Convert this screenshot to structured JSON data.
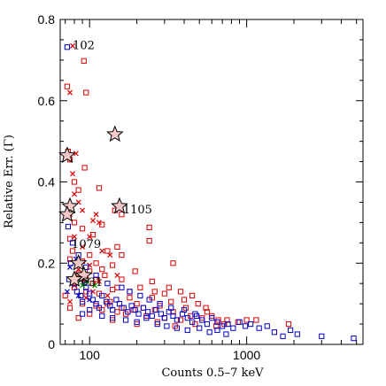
{
  "chart_data": {
    "type": "scatter",
    "title": "",
    "xlabel": "Counts 0.5–7 keV",
    "ylabel": "Relative Err. (Γ)",
    "xscale": "log",
    "xlim": [
      65,
      5500
    ],
    "ylim": [
      0,
      0.8
    ],
    "x_ticks": [
      100,
      1000
    ],
    "x_tick_labels": [
      "100",
      "1000"
    ],
    "y_ticks": [
      0,
      0.2,
      0.4,
      0.6,
      0.8
    ],
    "y_tick_labels": [
      "0",
      "0.2",
      "0.4",
      "0.6",
      "0.8"
    ],
    "grid": false,
    "colors": {
      "red": "#dd0000",
      "blue": "#0000cc",
      "green": "#009900"
    },
    "annotations": [
      {
        "text": "102",
        "x": 78,
        "y": 0.738
      },
      {
        "text": "1105",
        "x": 163,
        "y": 0.333
      },
      {
        "text": "1079",
        "x": 77,
        "y": 0.248
      },
      {
        "text": "631",
        "x": 88,
        "y": 0.155
      }
    ],
    "stars": [
      {
        "x": 145,
        "y": 0.517
      },
      {
        "x": 72,
        "y": 0.465
      },
      {
        "x": 155,
        "y": 0.34
      },
      {
        "x": 75,
        "y": 0.34
      },
      {
        "x": 72,
        "y": 0.32
      },
      {
        "x": 85,
        "y": 0.2
      },
      {
        "x": 92,
        "y": 0.17
      },
      {
        "x": 80,
        "y": 0.16
      }
    ],
    "series": [
      {
        "color": "red",
        "marker": "square",
        "points": [
          [
            92,
            0.698
          ],
          [
            72,
            0.635
          ],
          [
            95,
            0.62
          ],
          [
            73,
            0.475
          ],
          [
            75,
            0.455
          ],
          [
            93,
            0.435
          ],
          [
            80,
            0.4
          ],
          [
            85,
            0.38
          ],
          [
            115,
            0.385
          ],
          [
            160,
            0.32
          ],
          [
            80,
            0.3
          ],
          [
            120,
            0.295
          ],
          [
            145,
            0.33
          ],
          [
            90,
            0.285
          ],
          [
            240,
            0.288
          ],
          [
            105,
            0.27
          ],
          [
            75,
            0.26
          ],
          [
            240,
            0.255
          ],
          [
            150,
            0.24
          ],
          [
            130,
            0.23
          ],
          [
            100,
            0.22
          ],
          [
            75,
            0.21
          ],
          [
            160,
            0.22
          ],
          [
            110,
            0.2
          ],
          [
            90,
            0.205
          ],
          [
            340,
            0.2
          ],
          [
            195,
            0.18
          ],
          [
            140,
            0.195
          ],
          [
            120,
            0.185
          ],
          [
            100,
            0.18
          ],
          [
            85,
            0.175
          ],
          [
            105,
            0.15
          ],
          [
            250,
            0.155
          ],
          [
            160,
            0.16
          ],
          [
            125,
            0.17
          ],
          [
            80,
            0.14
          ],
          [
            210,
            0.14
          ],
          [
            95,
            0.13
          ],
          [
            115,
            0.125
          ],
          [
            140,
            0.135
          ],
          [
            300,
            0.125
          ],
          [
            180,
            0.13
          ],
          [
            380,
            0.13
          ],
          [
            250,
            0.115
          ],
          [
            450,
            0.12
          ],
          [
            330,
            0.105
          ],
          [
            200,
            0.1
          ],
          [
            160,
            0.09
          ],
          [
            130,
            0.1
          ],
          [
            110,
            0.095
          ],
          [
            90,
            0.1
          ],
          [
            280,
            0.095
          ],
          [
            410,
            0.09
          ],
          [
            490,
            0.1
          ],
          [
            560,
            0.08
          ],
          [
            260,
            0.085
          ],
          [
            220,
            0.09
          ],
          [
            190,
            0.085
          ],
          [
            150,
            0.08
          ],
          [
            120,
            0.085
          ],
          [
            100,
            0.075
          ],
          [
            340,
            0.08
          ],
          [
            600,
            0.07
          ],
          [
            660,
            0.06
          ],
          [
            750,
            0.06
          ],
          [
            520,
            0.065
          ],
          [
            440,
            0.07
          ],
          [
            380,
            0.06
          ],
          [
            300,
            0.065
          ],
          [
            230,
            0.07
          ],
          [
            170,
            0.075
          ],
          [
            85,
            0.065
          ],
          [
            720,
            0.05
          ],
          [
            880,
            0.055
          ],
          [
            1000,
            0.06
          ],
          [
            640,
            0.045
          ],
          [
            470,
            0.05
          ],
          [
            350,
            0.045
          ],
          [
            270,
            0.055
          ],
          [
            200,
            0.05
          ],
          [
            140,
            0.06
          ],
          [
            75,
            0.09
          ],
          [
            1150,
            0.06
          ],
          [
            1850,
            0.05
          ],
          [
            550,
            0.09
          ],
          [
            400,
            0.11
          ],
          [
            320,
            0.14
          ],
          [
            260,
            0.13
          ],
          [
            180,
            0.115
          ],
          [
            150,
            0.14
          ],
          [
            135,
            0.105
          ],
          [
            110,
            0.16
          ],
          [
            95,
            0.16
          ],
          [
            88,
            0.12
          ],
          [
            70,
            0.12
          ],
          [
            78,
            0.23
          ]
        ]
      },
      {
        "color": "red",
        "marker": "x",
        "points": [
          [
            78,
            0.735
          ],
          [
            75,
            0.62
          ],
          [
            82,
            0.47
          ],
          [
            78,
            0.42
          ],
          [
            80,
            0.37
          ],
          [
            85,
            0.35
          ],
          [
            90,
            0.33
          ],
          [
            75,
            0.32
          ],
          [
            105,
            0.305
          ],
          [
            110,
            0.32
          ],
          [
            115,
            0.3
          ],
          [
            100,
            0.265
          ],
          [
            80,
            0.265
          ],
          [
            90,
            0.24
          ],
          [
            120,
            0.23
          ],
          [
            135,
            0.22
          ],
          [
            100,
            0.195
          ],
          [
            85,
            0.185
          ],
          [
            90,
            0.16
          ],
          [
            115,
            0.155
          ],
          [
            150,
            0.17
          ],
          [
            80,
            0.145
          ],
          [
            105,
            0.13
          ],
          [
            130,
            0.12
          ],
          [
            95,
            0.115
          ],
          [
            75,
            0.105
          ]
        ]
      },
      {
        "color": "blue",
        "marker": "square",
        "points": [
          [
            72,
            0.732
          ],
          [
            73,
            0.29
          ],
          [
            76,
            0.2
          ],
          [
            74,
            0.16
          ],
          [
            80,
            0.15
          ],
          [
            83,
            0.13
          ],
          [
            88,
            0.12
          ],
          [
            90,
            0.105
          ],
          [
            95,
            0.14
          ],
          [
            100,
            0.125
          ],
          [
            105,
            0.11
          ],
          [
            110,
            0.1
          ],
          [
            115,
            0.09
          ],
          [
            120,
            0.12
          ],
          [
            128,
            0.105
          ],
          [
            135,
            0.095
          ],
          [
            140,
            0.085
          ],
          [
            148,
            0.11
          ],
          [
            155,
            0.1
          ],
          [
            165,
            0.09
          ],
          [
            175,
            0.08
          ],
          [
            185,
            0.095
          ],
          [
            195,
            0.085
          ],
          [
            205,
            0.075
          ],
          [
            220,
            0.09
          ],
          [
            235,
            0.08
          ],
          [
            250,
            0.07
          ],
          [
            265,
            0.085
          ],
          [
            285,
            0.075
          ],
          [
            300,
            0.065
          ],
          [
            320,
            0.08
          ],
          [
            340,
            0.07
          ],
          [
            360,
            0.06
          ],
          [
            390,
            0.075
          ],
          [
            420,
            0.065
          ],
          [
            450,
            0.055
          ],
          [
            480,
            0.07
          ],
          [
            520,
            0.06
          ],
          [
            560,
            0.05
          ],
          [
            600,
            0.065
          ],
          [
            650,
            0.055
          ],
          [
            700,
            0.045
          ],
          [
            760,
            0.05
          ],
          [
            820,
            0.04
          ],
          [
            900,
            0.055
          ],
          [
            980,
            0.045
          ],
          [
            1060,
            0.05
          ],
          [
            1200,
            0.04
          ],
          [
            1350,
            0.045
          ],
          [
            1500,
            0.03
          ],
          [
            1700,
            0.02
          ],
          [
            1900,
            0.035
          ],
          [
            2100,
            0.025
          ],
          [
            3000,
            0.02
          ],
          [
            4800,
            0.015
          ],
          [
            130,
            0.15
          ],
          [
            160,
            0.14
          ],
          [
            110,
            0.17
          ],
          [
            95,
            0.19
          ],
          [
            85,
            0.22
          ],
          [
            78,
            0.25
          ],
          [
            180,
            0.13
          ],
          [
            210,
            0.12
          ],
          [
            240,
            0.11
          ],
          [
            280,
            0.1
          ],
          [
            330,
            0.09
          ],
          [
            400,
            0.085
          ],
          [
            470,
            0.075
          ],
          [
            90,
            0.075
          ],
          [
            100,
            0.085
          ],
          [
            120,
            0.07
          ],
          [
            140,
            0.065
          ],
          [
            170,
            0.06
          ],
          [
            200,
            0.055
          ],
          [
            230,
            0.065
          ],
          [
            270,
            0.05
          ],
          [
            310,
            0.045
          ],
          [
            360,
            0.04
          ],
          [
            420,
            0.035
          ],
          [
            500,
            0.04
          ],
          [
            580,
            0.03
          ],
          [
            650,
            0.035
          ],
          [
            740,
            0.025
          ]
        ]
      },
      {
        "color": "blue",
        "marker": "x",
        "points": [
          [
            72,
            0.13
          ],
          [
            78,
            0.16
          ],
          [
            85,
            0.12
          ],
          [
            92,
            0.15
          ],
          [
            100,
            0.11
          ],
          [
            75,
            0.19
          ],
          [
            82,
            0.21
          ]
        ]
      },
      {
        "color": "green",
        "marker": "x",
        "points": [
          [
            84,
            0.16
          ],
          [
            96,
            0.155
          ],
          [
            80,
            0.165
          ],
          [
            108,
            0.145
          ],
          [
            90,
            0.145
          ]
        ]
      }
    ]
  }
}
